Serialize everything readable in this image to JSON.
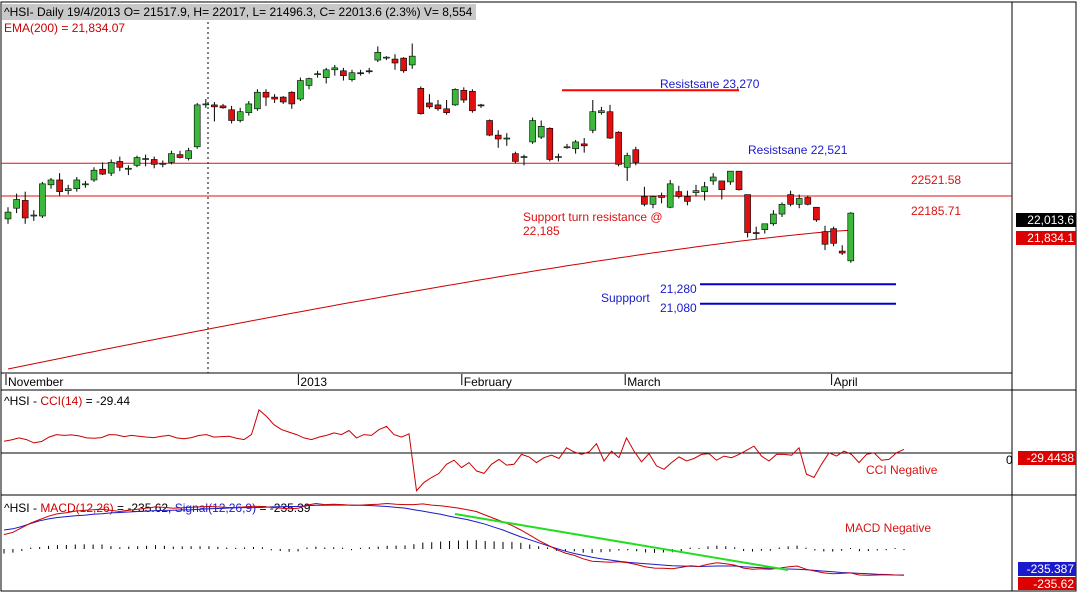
{
  "chart_data": {
    "type": "candlestick",
    "symbol": "^HSI",
    "header": {
      "price_line": "^HSI- Daily 19/4/2013 O= 21517.9, H= 22017, L= 21496.3, C= 22013.6 (2.3%) V= 8,554",
      "ema_line": "EMA(200) = 21,834.07"
    },
    "price_axis": {
      "ylim": [
        20400,
        23950
      ]
    },
    "month_labels": [
      {
        "text": "November",
        "index": 0
      },
      {
        "text": "2013",
        "index": 34
      },
      {
        "text": "February",
        "index": 53
      },
      {
        "text": "March",
        "index": 72
      },
      {
        "text": "April",
        "index": 96
      }
    ],
    "ohlc": [
      {
        "o": 21950,
        "h": 22070,
        "l": 21900,
        "c": 22020
      },
      {
        "o": 22060,
        "h": 22210,
        "l": 22010,
        "c": 22150
      },
      {
        "o": 22140,
        "h": 22230,
        "l": 21900,
        "c": 21960
      },
      {
        "o": 21980,
        "h": 22040,
        "l": 21930,
        "c": 21990
      },
      {
        "o": 21980,
        "h": 22330,
        "l": 21960,
        "c": 22310
      },
      {
        "o": 22300,
        "h": 22370,
        "l": 22260,
        "c": 22350
      },
      {
        "o": 22350,
        "h": 22420,
        "l": 22190,
        "c": 22230
      },
      {
        "o": 22240,
        "h": 22300,
        "l": 22200,
        "c": 22260
      },
      {
        "o": 22260,
        "h": 22380,
        "l": 22230,
        "c": 22350
      },
      {
        "o": 22300,
        "h": 22340,
        "l": 22270,
        "c": 22310
      },
      {
        "o": 22350,
        "h": 22480,
        "l": 22330,
        "c": 22450
      },
      {
        "o": 22460,
        "h": 22530,
        "l": 22400,
        "c": 22410
      },
      {
        "o": 22420,
        "h": 22560,
        "l": 22390,
        "c": 22530
      },
      {
        "o": 22540,
        "h": 22590,
        "l": 22440,
        "c": 22480
      },
      {
        "o": 22470,
        "h": 22500,
        "l": 22400,
        "c": 22470
      },
      {
        "o": 22500,
        "h": 22600,
        "l": 22480,
        "c": 22580
      },
      {
        "o": 22570,
        "h": 22610,
        "l": 22490,
        "c": 22570
      },
      {
        "o": 22560,
        "h": 22590,
        "l": 22470,
        "c": 22510
      },
      {
        "o": 22510,
        "h": 22550,
        "l": 22480,
        "c": 22520
      },
      {
        "o": 22530,
        "h": 22650,
        "l": 22510,
        "c": 22620
      },
      {
        "o": 22610,
        "h": 22650,
        "l": 22570,
        "c": 22580
      },
      {
        "o": 22570,
        "h": 22680,
        "l": 22550,
        "c": 22650
      },
      {
        "o": 22690,
        "h": 23140,
        "l": 22670,
        "c": 23120
      },
      {
        "o": 23120,
        "h": 23180,
        "l": 23090,
        "c": 23130
      },
      {
        "o": 23120,
        "h": 23150,
        "l": 22950,
        "c": 23100
      },
      {
        "o": 23110,
        "h": 23130,
        "l": 23080,
        "c": 23090
      },
      {
        "o": 23070,
        "h": 23110,
        "l": 22930,
        "c": 22960
      },
      {
        "o": 22960,
        "h": 23090,
        "l": 22940,
        "c": 23050
      },
      {
        "o": 23040,
        "h": 23160,
        "l": 23010,
        "c": 23130
      },
      {
        "o": 23080,
        "h": 23280,
        "l": 23060,
        "c": 23250
      },
      {
        "o": 23250,
        "h": 23280,
        "l": 23110,
        "c": 23200
      },
      {
        "o": 23200,
        "h": 23230,
        "l": 23140,
        "c": 23180
      },
      {
        "o": 23200,
        "h": 23210,
        "l": 23130,
        "c": 23150
      },
      {
        "o": 23250,
        "h": 23260,
        "l": 23080,
        "c": 23130
      },
      {
        "o": 23180,
        "h": 23400,
        "l": 23160,
        "c": 23370
      },
      {
        "o": 23320,
        "h": 23400,
        "l": 23280,
        "c": 23390
      },
      {
        "o": 23430,
        "h": 23470,
        "l": 23400,
        "c": 23440
      },
      {
        "o": 23400,
        "h": 23500,
        "l": 23340,
        "c": 23480
      },
      {
        "o": 23480,
        "h": 23530,
        "l": 23420,
        "c": 23500
      },
      {
        "o": 23470,
        "h": 23500,
        "l": 23370,
        "c": 23420
      },
      {
        "o": 23380,
        "h": 23480,
        "l": 23360,
        "c": 23450
      },
      {
        "o": 23450,
        "h": 23480,
        "l": 23420,
        "c": 23440
      },
      {
        "o": 23470,
        "h": 23500,
        "l": 23440,
        "c": 23460
      },
      {
        "o": 23580,
        "h": 23720,
        "l": 23560,
        "c": 23660
      },
      {
        "o": 23600,
        "h": 23620,
        "l": 23580,
        "c": 23610
      },
      {
        "o": 23590,
        "h": 23640,
        "l": 23480,
        "c": 23550
      },
      {
        "o": 23600,
        "h": 23610,
        "l": 23450,
        "c": 23470
      },
      {
        "o": 23530,
        "h": 23750,
        "l": 23490,
        "c": 23620
      },
      {
        "o": 23290,
        "h": 23310,
        "l": 23020,
        "c": 23030
      },
      {
        "o": 23140,
        "h": 23230,
        "l": 23080,
        "c": 23100
      },
      {
        "o": 23120,
        "h": 23170,
        "l": 23060,
        "c": 23080
      },
      {
        "o": 23080,
        "h": 23170,
        "l": 23020,
        "c": 23040
      },
      {
        "o": 23120,
        "h": 23290,
        "l": 23110,
        "c": 23280
      },
      {
        "o": 23270,
        "h": 23300,
        "l": 23140,
        "c": 23170
      },
      {
        "o": 23260,
        "h": 23280,
        "l": 23040,
        "c": 23060
      },
      {
        "o": 23120,
        "h": 23130,
        "l": 23090,
        "c": 23110
      },
      {
        "o": 22960,
        "h": 22970,
        "l": 22800,
        "c": 22810
      },
      {
        "o": 22810,
        "h": 22860,
        "l": 22680,
        "c": 22770
      },
      {
        "o": 22770,
        "h": 22830,
        "l": 22700,
        "c": 22780
      },
      {
        "o": 22620,
        "h": 22640,
        "l": 22520,
        "c": 22540
      },
      {
        "o": 22580,
        "h": 22610,
        "l": 22500,
        "c": 22590
      },
      {
        "o": 22740,
        "h": 22990,
        "l": 22720,
        "c": 22960
      },
      {
        "o": 22790,
        "h": 22960,
        "l": 22770,
        "c": 22900
      },
      {
        "o": 22880,
        "h": 22890,
        "l": 22540,
        "c": 22560
      },
      {
        "o": 22580,
        "h": 22620,
        "l": 22540,
        "c": 22590
      },
      {
        "o": 22680,
        "h": 22720,
        "l": 22670,
        "c": 22690
      },
      {
        "o": 22670,
        "h": 22760,
        "l": 22620,
        "c": 22740
      },
      {
        "o": 22720,
        "h": 22780,
        "l": 22630,
        "c": 22700
      },
      {
        "o": 22860,
        "h": 23170,
        "l": 22830,
        "c": 23050
      },
      {
        "o": 23040,
        "h": 23100,
        "l": 23020,
        "c": 23060
      },
      {
        "o": 23050,
        "h": 23120,
        "l": 22770,
        "c": 22780
      },
      {
        "o": 22840,
        "h": 22850,
        "l": 22490,
        "c": 22510
      },
      {
        "o": 22480,
        "h": 22630,
        "l": 22340,
        "c": 22600
      },
      {
        "o": 22660,
        "h": 22690,
        "l": 22500,
        "c": 22530
      },
      {
        "o": 22180,
        "h": 22280,
        "l": 22080,
        "c": 22100
      },
      {
        "o": 22100,
        "h": 22190,
        "l": 22060,
        "c": 22180
      },
      {
        "o": 22190,
        "h": 22220,
        "l": 22110,
        "c": 22170
      },
      {
        "o": 22070,
        "h": 22350,
        "l": 22060,
        "c": 22310
      },
      {
        "o": 22230,
        "h": 22290,
        "l": 22160,
        "c": 22180
      },
      {
        "o": 22180,
        "h": 22240,
        "l": 22090,
        "c": 22130
      },
      {
        "o": 22220,
        "h": 22300,
        "l": 22180,
        "c": 22240
      },
      {
        "o": 22230,
        "h": 22330,
        "l": 22140,
        "c": 22280
      },
      {
        "o": 22340,
        "h": 22420,
        "l": 22300,
        "c": 22380
      },
      {
        "o": 22340,
        "h": 22340,
        "l": 22150,
        "c": 22250
      },
      {
        "o": 22330,
        "h": 22430,
        "l": 22300,
        "c": 22440
      },
      {
        "o": 22440,
        "h": 22440,
        "l": 22240,
        "c": 22250
      },
      {
        "o": 22200,
        "h": 22200,
        "l": 21760,
        "c": 21810
      },
      {
        "o": 21810,
        "h": 21870,
        "l": 21740,
        "c": 21800
      },
      {
        "o": 21840,
        "h": 21900,
        "l": 21800,
        "c": 21900
      },
      {
        "o": 21900,
        "h": 22040,
        "l": 21880,
        "c": 22000
      },
      {
        "o": 22000,
        "h": 22120,
        "l": 21970,
        "c": 22100
      },
      {
        "o": 22200,
        "h": 22240,
        "l": 22080,
        "c": 22100
      },
      {
        "o": 22100,
        "h": 22200,
        "l": 22060,
        "c": 22160
      },
      {
        "o": 22170,
        "h": 22190,
        "l": 22090,
        "c": 22100
      },
      {
        "o": 22070,
        "h": 22070,
        "l": 21920,
        "c": 21940
      },
      {
        "o": 21820,
        "h": 21880,
        "l": 21630,
        "c": 21690
      },
      {
        "o": 21850,
        "h": 21870,
        "l": 21670,
        "c": 21700
      },
      {
        "o": 21620,
        "h": 21680,
        "l": 21580,
        "c": 21600
      },
      {
        "o": 21520,
        "h": 22020,
        "l": 21500,
        "c": 22010
      }
    ],
    "ema200": {
      "name": "EMA(200)",
      "start": 20410,
      "end": 21834
    },
    "horizontal_lines": [
      {
        "label": "22521.58",
        "value": 22521.58
      },
      {
        "label": "22185.71",
        "value": 22185.71
      }
    ],
    "annotations": {
      "resistance_1": "Resistsane 23,270",
      "resistance_2": "Resistsane 22,521",
      "support_turn_1": "Support turn resistance @",
      "support_turn_2": "22,185",
      "support_label": "Suppport",
      "support_1": "21,280",
      "support_2": "21,080"
    },
    "levels": {
      "resistance_1": 23270,
      "support_1": 21280,
      "support_2": 21080
    },
    "price_tags": {
      "last_close": "22,013.6",
      "ema": "21,834.1"
    },
    "colors": {
      "up": "#3cb83c",
      "down": "#e01010",
      "ema": "#cc0000",
      "resistance": "#ff0000",
      "support": "#0000cc",
      "trend": "#22dd22",
      "text_blue": "#1a1acc",
      "text_red": "#dd1111"
    },
    "cci": {
      "title_prefix": "^HSI - ",
      "name": "CCI(14)",
      "title_suffix": " = -29.44",
      "zero_label": "0",
      "value_tag": "-29.4438",
      "note": "CCI Negative",
      "ylim": [
        -300,
        300
      ],
      "values": [
        20,
        28,
        40,
        30,
        10,
        18,
        45,
        60,
        55,
        58,
        52,
        40,
        38,
        42,
        60,
        58,
        48,
        55,
        50,
        45,
        42,
        50,
        55,
        40,
        35,
        42,
        55,
        60,
        45,
        48,
        50,
        38,
        30,
        60,
        210,
        170,
        120,
        90,
        75,
        60,
        40,
        30,
        45,
        55,
        70,
        60,
        85,
        40,
        60,
        55,
        90,
        110,
        60,
        45,
        65,
        -280,
        -230,
        -200,
        -175,
        -120,
        -95,
        -140,
        -110,
        -160,
        -175,
        -120,
        -90,
        -125,
        -120,
        -60,
        -75,
        -110,
        -80,
        -65,
        -85,
        -20,
        -45,
        -60,
        -45,
        5,
        -100,
        -40,
        -80,
        40,
        -40,
        -105,
        -55,
        -130,
        -150,
        -110,
        -75,
        -100,
        -85,
        -60,
        -55,
        -95,
        -70,
        -80,
        -60,
        -35,
        -10,
        -70,
        -100,
        -60,
        -60,
        -65,
        -20,
        -180,
        -200,
        -120,
        -50,
        -70,
        -40,
        -60,
        -110,
        -60,
        -50,
        -95,
        -90,
        -50,
        -29
      ]
    },
    "macd": {
      "title_prefix": "^HSI - ",
      "macd_name": "MACD(12,26)",
      "macd_value": " = -235.62, ",
      "signal_name": "Signal(12,26,9)",
      "signal_value": " = -235.39",
      "note": "MACD Negative",
      "tag_signal": "-235.387",
      "tag_macd": "-235.62",
      "ylim": [
        -300,
        90
      ],
      "macd": [
        -60,
        -50,
        -30,
        -10,
        5,
        20,
        30,
        35,
        42,
        45,
        48,
        50,
        45,
        40,
        46,
        50,
        55,
        60,
        58,
        54,
        56,
        58,
        60,
        62,
        60,
        58,
        57,
        60,
        63,
        62,
        58,
        55,
        52,
        54,
        68,
        75,
        70,
        72,
        70,
        67,
        68,
        70,
        72,
        75,
        72,
        70,
        70,
        73,
        68,
        65,
        60,
        55,
        48,
        40,
        25,
        10,
        -5,
        -20,
        -40,
        -62,
        -85,
        -105,
        -125,
        -140,
        -150,
        -165,
        -175,
        -178,
        -180,
        -178,
        -182,
        -190,
        -200,
        -205,
        -206,
        -208,
        -202,
        -195,
        -198,
        -188,
        -182,
        -186,
        -192,
        -205,
        -210,
        -208,
        -210,
        -205,
        -200,
        -196,
        -210,
        -218,
        -226,
        -230,
        -228,
        -226,
        -235,
        -236,
        -235,
        -234,
        -235,
        -236
      ],
      "signal": [
        -40,
        -35,
        -25,
        -12,
        0,
        8,
        14,
        18,
        22,
        24,
        28,
        30,
        34,
        36,
        38,
        40,
        42,
        44,
        45,
        46,
        47,
        48,
        50,
        52,
        53,
        55,
        56,
        57,
        57,
        58,
        60,
        61,
        62,
        62,
        65,
        67,
        67,
        68,
        68,
        68,
        67,
        66,
        64,
        62,
        58,
        55,
        48,
        42,
        35,
        28,
        20,
        12,
        5,
        -5,
        -15,
        -28,
        -40,
        -55,
        -70,
        -82,
        -95,
        -108,
        -120,
        -132,
        -142,
        -150,
        -158,
        -165,
        -170,
        -175,
        -180,
        -183,
        -186,
        -189,
        -192,
        -195,
        -196,
        -197,
        -198,
        -197,
        -196,
        -196,
        -196,
        -199,
        -201,
        -204,
        -206,
        -208,
        -209,
        -210,
        -212,
        -215,
        -218,
        -221,
        -224,
        -226,
        -228,
        -230,
        -232,
        -233,
        -235,
        -235
      ]
    }
  }
}
